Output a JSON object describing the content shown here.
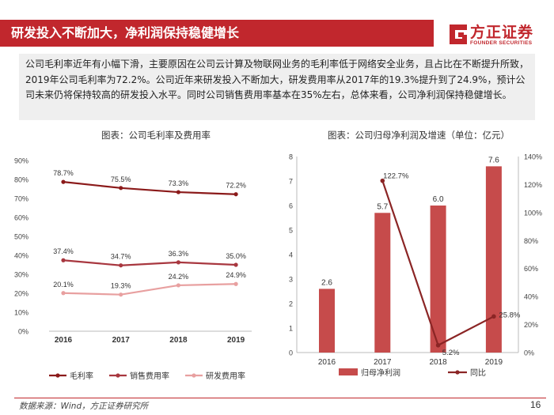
{
  "page": {
    "title": "研发投入不断加大，净利润保持稳健增长",
    "summary": "公司毛利率近年有小幅下滑，主要原因在公司云计算及物联网业务的毛利率低于网络安全业务，且占比在不断提升所致，2019年公司毛利率为72.2%。公司近年来研发投入不断加大，研发费用率从2017年的19.3%提升到了24.9%，预计公司未来仍将保持较高的研发投入水平。同时公司销售费用率基本在35%左右，总体来看，公司净利润保持稳健增长。",
    "source": "数据来源：Wind，方正证券研究所",
    "page_number": "16"
  },
  "logo": {
    "cn": "方正证券",
    "en": "FOUNDER SECURITIES"
  },
  "colors": {
    "brand": "#c1272d",
    "gross_margin": "#8b1a1a",
    "sales_rate": "#a8373f",
    "rd_rate": "#e8a0a0",
    "bar": "#c64b4b",
    "yoy_line": "#8b2525",
    "summary_bg": "#efefef"
  },
  "chart_data": [
    {
      "type": "line",
      "title": "图表：公司毛利率及费用率",
      "categories": [
        "2016",
        "2017",
        "2018",
        "2019"
      ],
      "yticks": [
        "0%",
        "10%",
        "20%",
        "30%",
        "40%",
        "50%",
        "60%",
        "70%",
        "80%",
        "90%"
      ],
      "ylim": [
        0,
        90
      ],
      "series": [
        {
          "name": "毛利率",
          "values": [
            78.7,
            75.5,
            73.3,
            72.2
          ],
          "labels": [
            "78.7%",
            "75.5%",
            "73.3%",
            "72.2%"
          ]
        },
        {
          "name": "销售费用率",
          "values": [
            37.4,
            34.7,
            36.3,
            35.0
          ],
          "labels": [
            "37.4%",
            "34.7%",
            "36.3%",
            "35.0%"
          ]
        },
        {
          "name": "研发费用率",
          "values": [
            20.1,
            19.3,
            24.2,
            24.9
          ],
          "labels": [
            "20.1%",
            "19.3%",
            "24.2%",
            "24.9%"
          ]
        }
      ],
      "legend_position": "bottom"
    },
    {
      "type": "bar+line",
      "title": "图表：公司归母净利润及增速（单位：亿元）",
      "categories": [
        "2016",
        "2017",
        "2018",
        "2019"
      ],
      "bars": {
        "name": "归母净利润",
        "values": [
          2.6,
          5.7,
          6.0,
          7.6
        ],
        "labels": [
          "2.6",
          "5.7",
          "6.0",
          "7.6"
        ]
      },
      "line": {
        "name": "同比",
        "values": [
          null,
          122.7,
          5.2,
          25.8
        ],
        "labels": [
          "",
          "122.7%",
          "5.2%",
          "25.8%"
        ]
      },
      "y_left_ticks": [
        "0",
        "1",
        "2",
        "3",
        "4",
        "5",
        "6",
        "7",
        "8"
      ],
      "y_left_lim": [
        0,
        8
      ],
      "y_right_ticks": [
        "0%",
        "20%",
        "40%",
        "60%",
        "80%",
        "100%",
        "120%",
        "140%"
      ],
      "y_right_lim": [
        0,
        140
      ],
      "legend_position": "bottom"
    }
  ]
}
